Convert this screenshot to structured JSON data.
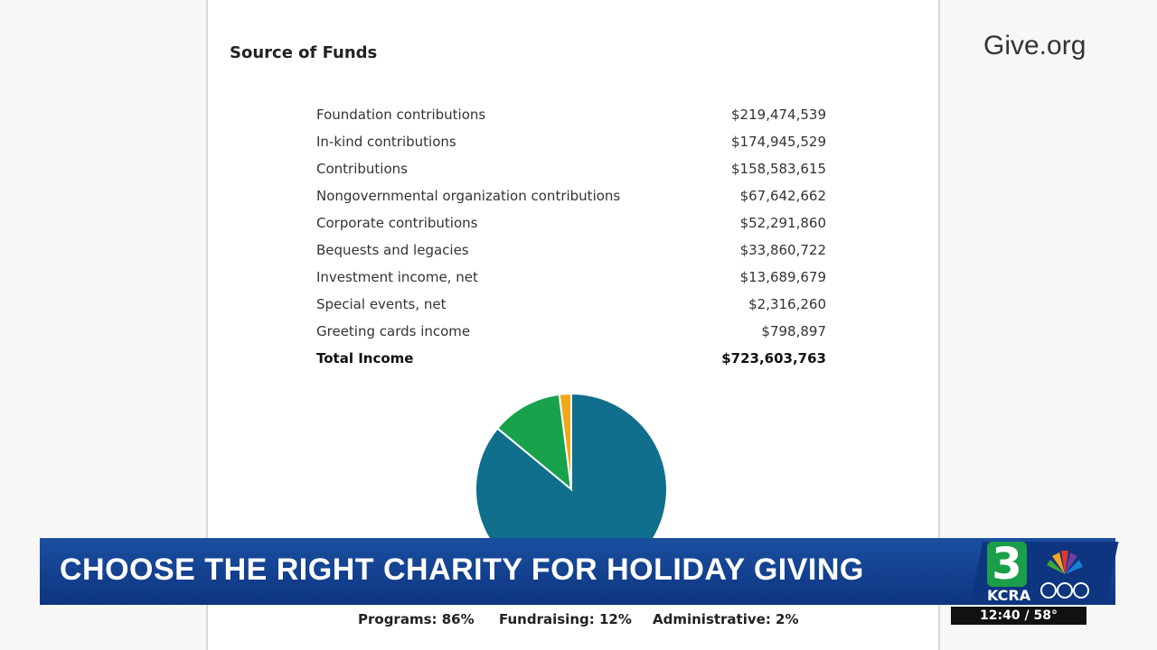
{
  "logo": "Give.org",
  "section_title": "Source of Funds",
  "table": {
    "rows": [
      [
        "Foundation contributions",
        "$219,474,539"
      ],
      [
        "In-kind contributions",
        "$174,945,529"
      ],
      [
        "Contributions",
        "$158,583,615"
      ],
      [
        "Nongovernmental organization contributions",
        "$67,642,662"
      ],
      [
        "Corporate contributions",
        "$52,291,860"
      ],
      [
        "Bequests and legacies",
        "$33,860,722"
      ],
      [
        "Investment income, net",
        "$13,689,679"
      ],
      [
        "Special events, net",
        "$2,316,260"
      ],
      [
        "Greeting cards income",
        "$798,897"
      ]
    ],
    "total": [
      "Total Income",
      "$723,603,763"
    ]
  },
  "chart_data": {
    "type": "pie",
    "values": [
      86,
      12,
      2
    ],
    "value_labels": [
      "Programs: 86%",
      "Fundraising: 12%",
      "Administrative: 2%"
    ],
    "colors": [
      "#0f6f8c",
      "#18a24b",
      "#f0a81c"
    ]
  },
  "banner": {
    "headline": "CHOOSE THE RIGHT CHARITY FOR HOLIDAY GIVING",
    "station_number": "3",
    "station": "KCRA",
    "time_temp": "12:40 / 58°"
  }
}
